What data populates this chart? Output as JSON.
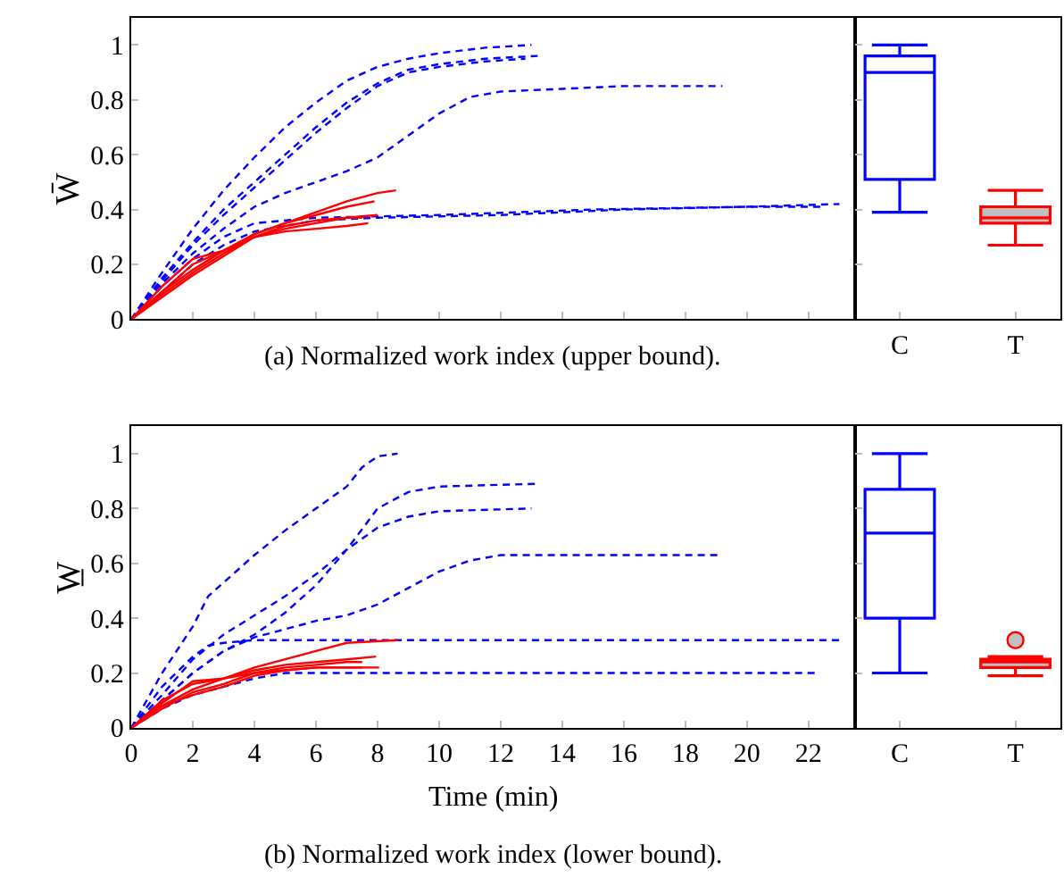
{
  "chart_data": [
    {
      "type": "line",
      "title": "(a) Normalized work index (upper bound).",
      "ylabel": "W̄",
      "xlim": [
        0,
        23.5
      ],
      "xticks": [
        0,
        2,
        4,
        6,
        8,
        10,
        12,
        14,
        16,
        18,
        20,
        22
      ],
      "ylim": [
        0,
        1.1
      ],
      "yticks": [
        0,
        0.2,
        0.4,
        0.6,
        0.8,
        1
      ],
      "tick_labels": "y",
      "series": [
        {
          "color": "#0000ff",
          "line_style": "dashed",
          "x": [
            0,
            1,
            2,
            3,
            4,
            5,
            6,
            7,
            8,
            9,
            10,
            11.5,
            13
          ],
          "values": [
            0,
            0.17,
            0.33,
            0.47,
            0.59,
            0.7,
            0.79,
            0.87,
            0.92,
            0.95,
            0.97,
            0.99,
            1.0
          ]
        },
        {
          "color": "#0000ff",
          "line_style": "dashed",
          "x": [
            0,
            1,
            2,
            3,
            4,
            5,
            6,
            7,
            8,
            9,
            10,
            11.5,
            13.2
          ],
          "values": [
            0,
            0.15,
            0.28,
            0.4,
            0.5,
            0.6,
            0.7,
            0.79,
            0.86,
            0.91,
            0.93,
            0.95,
            0.96
          ]
        },
        {
          "color": "#0000ff",
          "line_style": "dashed",
          "x": [
            0,
            1,
            2,
            3,
            4,
            5,
            6,
            7,
            8,
            9,
            10,
            11.5,
            12.8
          ],
          "values": [
            0,
            0.14,
            0.27,
            0.38,
            0.48,
            0.58,
            0.68,
            0.77,
            0.85,
            0.9,
            0.92,
            0.94,
            0.95
          ]
        },
        {
          "color": "#0000ff",
          "line_style": "dashed",
          "x": [
            0,
            1,
            2,
            3,
            4,
            5,
            6,
            7,
            8,
            9,
            10,
            11,
            12,
            14,
            16,
            19.2
          ],
          "values": [
            0,
            0.13,
            0.24,
            0.33,
            0.41,
            0.46,
            0.5,
            0.54,
            0.59,
            0.67,
            0.75,
            0.81,
            0.83,
            0.84,
            0.85,
            0.85
          ]
        },
        {
          "color": "#0000ff",
          "line_style": "dashed",
          "x": [
            0,
            1,
            2,
            3,
            4,
            6,
            10,
            15,
            20,
            23
          ],
          "values": [
            0,
            0.12,
            0.22,
            0.3,
            0.35,
            0.37,
            0.38,
            0.4,
            0.41,
            0.42
          ]
        },
        {
          "color": "#0000ff",
          "line_style": "dashed",
          "x": [
            0,
            1,
            2,
            3,
            4,
            6,
            8,
            12,
            16,
            20,
            22.5
          ],
          "values": [
            0,
            0.1,
            0.2,
            0.27,
            0.32,
            0.36,
            0.37,
            0.38,
            0.4,
            0.41,
            0.41
          ]
        },
        {
          "color": "#ff0000",
          "line_style": "solid",
          "x": [
            0,
            1,
            2,
            3,
            4,
            5,
            6,
            7,
            8,
            8.6
          ],
          "values": [
            0,
            0.1,
            0.18,
            0.25,
            0.31,
            0.35,
            0.39,
            0.43,
            0.46,
            0.47
          ]
        },
        {
          "color": "#ff0000",
          "line_style": "solid",
          "x": [
            0,
            1,
            2,
            3,
            4,
            5,
            6,
            7,
            7.9
          ],
          "values": [
            0,
            0.1,
            0.2,
            0.25,
            0.31,
            0.35,
            0.38,
            0.41,
            0.43
          ]
        },
        {
          "color": "#ff0000",
          "line_style": "solid",
          "x": [
            0,
            1,
            2,
            3,
            4,
            5,
            6,
            7,
            8
          ],
          "values": [
            0,
            0.08,
            0.16,
            0.23,
            0.3,
            0.34,
            0.36,
            0.37,
            0.38
          ]
        },
        {
          "color": "#ff0000",
          "line_style": "solid",
          "x": [
            0,
            1,
            2,
            3,
            4,
            5,
            6,
            7,
            7.7
          ],
          "values": [
            0,
            0.09,
            0.17,
            0.24,
            0.3,
            0.32,
            0.33,
            0.34,
            0.35
          ]
        },
        {
          "color": "#ff0000",
          "line_style": "solid",
          "x": [
            0,
            1,
            2,
            3,
            4,
            5,
            6,
            7,
            7.5
          ],
          "values": [
            0,
            0.12,
            0.22,
            0.25,
            0.3,
            0.33,
            0.35,
            0.37,
            0.37
          ]
        }
      ]
    },
    {
      "type": "box",
      "categories": [
        "C",
        "T"
      ],
      "colors": [
        "#0000ff",
        "#ff0000"
      ],
      "ylim": [
        0,
        1.1
      ],
      "yticks": [
        {
          "value": 0,
          "label": null
        },
        {
          "value": 0.2,
          "label": null
        },
        {
          "value": 0.4,
          "label": null
        },
        {
          "value": 0.6,
          "label": null
        },
        {
          "value": 0.8,
          "label": null
        },
        {
          "value": 1,
          "label": null
        }
      ],
      "tick_labels": "x",
      "boxes": [
        {
          "low": 0.39,
          "q1": 0.51,
          "median": 0.9,
          "q3": 0.96,
          "high": 1.0
        },
        {
          "low": 0.27,
          "q1": 0.35,
          "median": 0.37,
          "q3": 0.41,
          "high": 0.47
        }
      ]
    },
    {
      "type": "line",
      "title": "(b) Normalized work index (lower bound).",
      "xlabel": "Time (min)",
      "ylabel": "W̲",
      "xlim": [
        0,
        23.5
      ],
      "xticks": [
        0,
        2,
        4,
        6,
        8,
        10,
        12,
        14,
        16,
        18,
        20,
        22
      ],
      "ylim": [
        0,
        1.1
      ],
      "yticks": [
        0,
        0.2,
        0.4,
        0.6,
        0.8,
        1
      ],
      "series": [
        {
          "color": "#0000ff",
          "line_style": "dashed",
          "x": [
            0,
            1,
            2,
            2.5,
            3,
            4,
            5,
            6,
            7,
            7.5,
            8,
            8.65
          ],
          "values": [
            0,
            0.2,
            0.37,
            0.48,
            0.53,
            0.63,
            0.72,
            0.8,
            0.88,
            0.95,
            0.99,
            1.0
          ]
        },
        {
          "color": "#0000ff",
          "line_style": "dashed",
          "x": [
            0,
            1,
            2,
            3,
            4,
            5,
            6,
            7,
            8,
            9,
            10,
            13.2
          ],
          "values": [
            0,
            0.1,
            0.2,
            0.28,
            0.34,
            0.42,
            0.52,
            0.65,
            0.8,
            0.86,
            0.88,
            0.89
          ]
        },
        {
          "color": "#0000ff",
          "line_style": "dashed",
          "x": [
            0,
            1,
            2,
            3,
            4,
            5,
            6,
            7,
            8,
            9,
            10,
            13
          ],
          "values": [
            0,
            0.12,
            0.25,
            0.34,
            0.41,
            0.48,
            0.56,
            0.65,
            0.73,
            0.77,
            0.79,
            0.8
          ]
        },
        {
          "color": "#0000ff",
          "line_style": "dashed",
          "x": [
            0,
            1,
            2,
            3,
            4,
            5,
            6,
            7,
            8,
            9,
            10,
            11,
            12,
            19.1
          ],
          "values": [
            0,
            0.1,
            0.2,
            0.28,
            0.33,
            0.36,
            0.39,
            0.41,
            0.45,
            0.51,
            0.57,
            0.61,
            0.63,
            0.63
          ]
        },
        {
          "color": "#0000ff",
          "line_style": "dashed",
          "x": [
            0,
            1,
            2,
            2.5,
            3,
            4,
            23
          ],
          "values": [
            0,
            0.15,
            0.26,
            0.3,
            0.31,
            0.32,
            0.32
          ]
        },
        {
          "color": "#0000ff",
          "line_style": "dashed",
          "x": [
            0,
            1,
            2,
            3,
            4,
            5,
            22.2
          ],
          "values": [
            0,
            0.07,
            0.12,
            0.15,
            0.18,
            0.2,
            0.2
          ]
        },
        {
          "color": "#ff0000",
          "line_style": "solid",
          "x": [
            0,
            1,
            2,
            3,
            4,
            5,
            6,
            7,
            8.65
          ],
          "values": [
            0,
            0.1,
            0.16,
            0.18,
            0.22,
            0.25,
            0.28,
            0.31,
            0.32
          ]
        },
        {
          "color": "#ff0000",
          "line_style": "solid",
          "x": [
            0,
            1,
            2,
            3,
            4,
            5,
            6,
            7,
            7.95
          ],
          "values": [
            0,
            0.08,
            0.14,
            0.18,
            0.21,
            0.23,
            0.24,
            0.25,
            0.26
          ]
        },
        {
          "color": "#ff0000",
          "line_style": "solid",
          "x": [
            0,
            1,
            2,
            3,
            4,
            5,
            6,
            8.05
          ],
          "values": [
            0,
            0.09,
            0.17,
            0.18,
            0.2,
            0.21,
            0.22,
            0.22
          ]
        },
        {
          "color": "#ff0000",
          "line_style": "solid",
          "x": [
            0,
            1,
            2,
            3,
            4,
            5,
            6,
            7,
            7.5
          ],
          "values": [
            0,
            0.07,
            0.13,
            0.16,
            0.2,
            0.22,
            0.23,
            0.24,
            0.24
          ]
        },
        {
          "color": "#ff0000",
          "line_style": "solid",
          "x": [
            0,
            1,
            2,
            3,
            4,
            5,
            6,
            7,
            7.5
          ],
          "values": [
            0,
            0.08,
            0.12,
            0.15,
            0.19,
            0.21,
            0.22,
            0.22,
            0.22
          ]
        }
      ]
    },
    {
      "type": "box",
      "categories": [
        "C",
        "T"
      ],
      "colors": [
        "#0000ff",
        "#ff0000"
      ],
      "ylim": [
        0,
        1.1
      ],
      "yticks": [
        {
          "value": 0,
          "label": null
        },
        {
          "value": 0.2,
          "label": null
        },
        {
          "value": 0.4,
          "label": null
        },
        {
          "value": 0.6,
          "label": null
        },
        {
          "value": 0.8,
          "label": null
        },
        {
          "value": 1,
          "label": null
        }
      ],
      "tick_labels": "x",
      "boxes": [
        {
          "low": 0.2,
          "q1": 0.4,
          "median": 0.71,
          "q3": 0.87,
          "high": 1.0
        },
        {
          "low": 0.19,
          "q1": 0.22,
          "median": 0.24,
          "q3": 0.25,
          "high": 0.26,
          "outliers": [
            0.32
          ]
        }
      ]
    }
  ]
}
